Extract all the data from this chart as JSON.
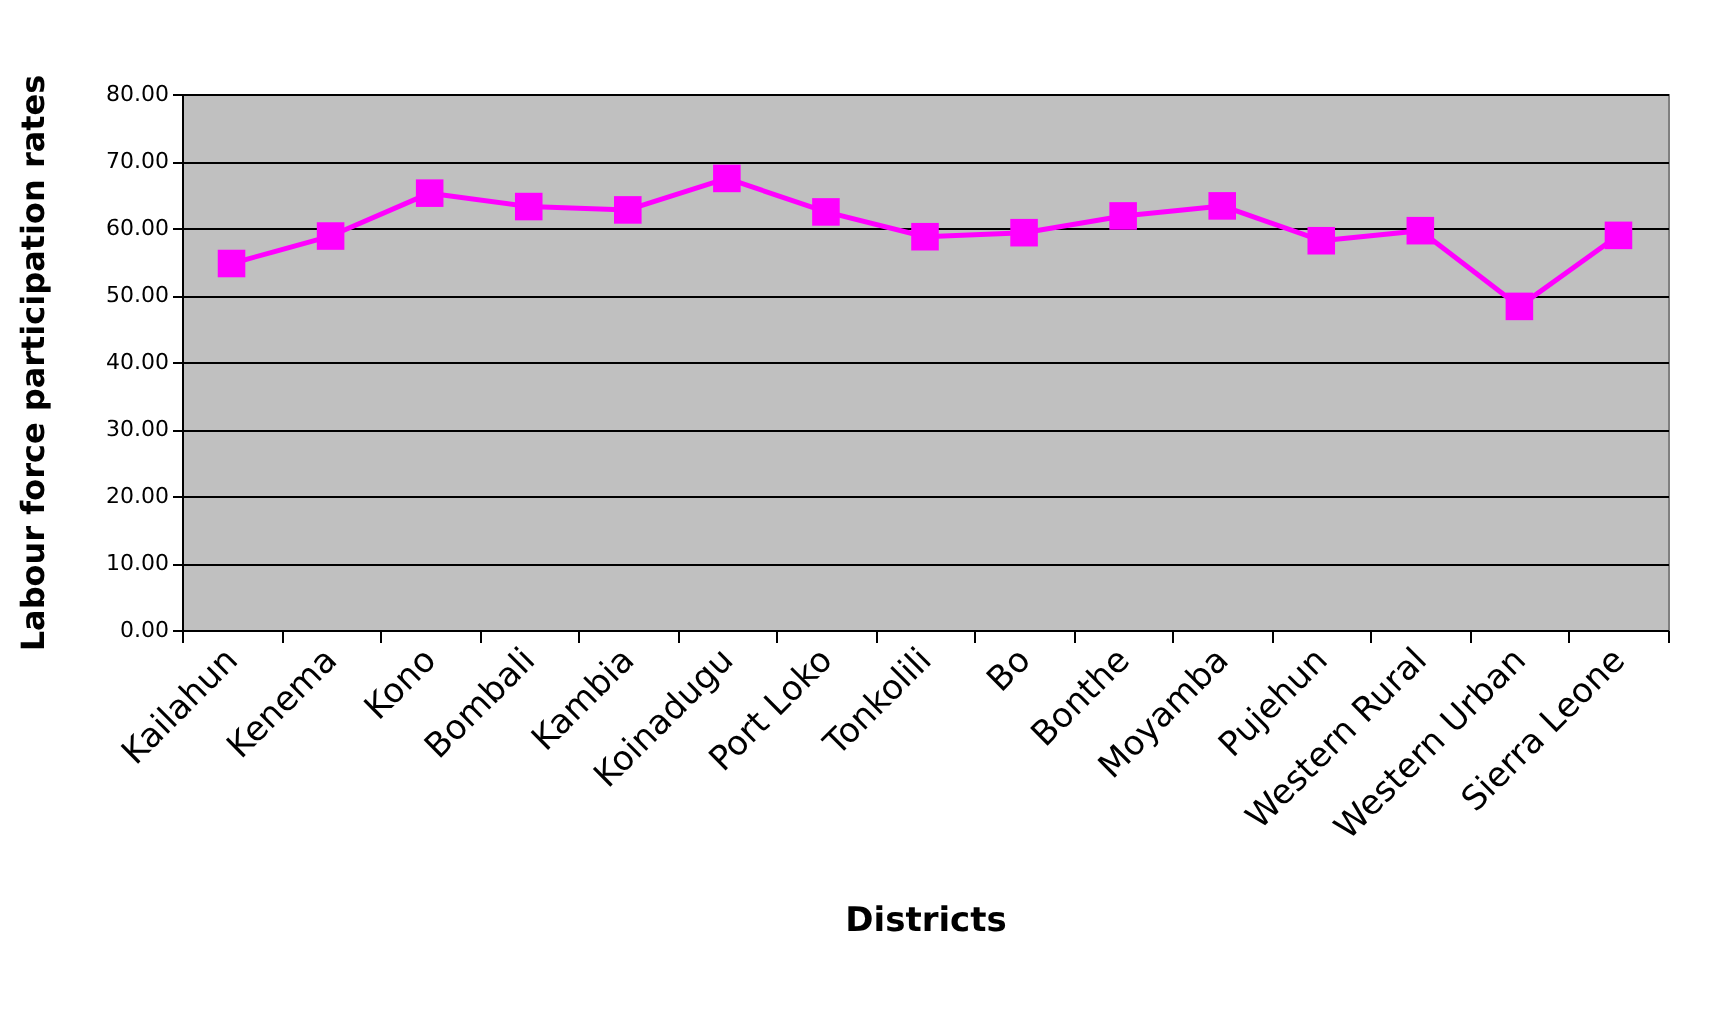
{
  "chart_data": {
    "type": "line",
    "xlabel": "Districts",
    "ylabel": "Labour force participation rates",
    "categories": [
      "Kailahun",
      "Kenema",
      "Kono",
      "Bombali",
      "Kambia",
      "Koinadugu",
      "Port Loko",
      "Tonkolili",
      "Bo",
      "Bonthe",
      "Moyamba",
      "Pujehun",
      "Western Rural",
      "Western Urban",
      "Sierra Leone"
    ],
    "series": [
      {
        "color": "#ff00ff",
        "values": [
          54.7,
          58.8,
          65.2,
          63.2,
          62.7,
          67.4,
          62.4,
          58.7,
          59.3,
          61.8,
          63.3,
          58.1,
          59.6,
          48.3,
          58.9
        ]
      }
    ],
    "ylim": [
      0,
      80
    ],
    "yticks": [
      {
        "value": 0,
        "label": "0.00"
      },
      {
        "value": 10,
        "label": "10.00"
      },
      {
        "value": 20,
        "label": "20.00"
      },
      {
        "value": 30,
        "label": "30.00"
      },
      {
        "value": 40,
        "label": "40.00"
      },
      {
        "value": 50,
        "label": "50.00"
      },
      {
        "value": 60,
        "label": "60.00"
      },
      {
        "value": 70,
        "label": "70.00"
      },
      {
        "value": 80,
        "label": "80.00"
      }
    ],
    "grid": "y",
    "legend": false,
    "marker": "square",
    "line_style": "solid"
  }
}
